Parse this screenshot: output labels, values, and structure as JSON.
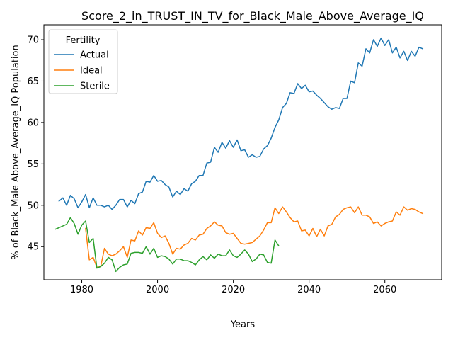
{
  "chart_data": {
    "type": "line",
    "title": "Score_2_in_TRUST_IN_TV_for_Black_Male_Above_Average_IQ",
    "xlabel": "Years",
    "ylabel": "% of Black_Male Above_Average_IQ Population",
    "xlim": [
      1970,
      2075
    ],
    "ylim": [
      41,
      71.8
    ],
    "xticks": [
      1980,
      2000,
      2020,
      2040,
      2060
    ],
    "yticks": [
      45,
      50,
      55,
      60,
      65,
      70
    ],
    "grid": false,
    "legend": {
      "title": "Fertility",
      "position": "upper-left"
    },
    "series": [
      {
        "name": "Actual",
        "color": "#1f77b4",
        "points": [
          [
            1974,
            50.5
          ],
          [
            1975,
            50.9
          ],
          [
            1976,
            50.0
          ],
          [
            1977,
            51.2
          ],
          [
            1978,
            50.8
          ],
          [
            1979,
            49.7
          ],
          [
            1980,
            50.4
          ],
          [
            1981,
            51.3
          ],
          [
            1982,
            49.7
          ],
          [
            1983,
            50.9
          ],
          [
            1984,
            50.0
          ],
          [
            1985,
            50.0
          ],
          [
            1986,
            49.8
          ],
          [
            1987,
            50.0
          ],
          [
            1988,
            49.5
          ],
          [
            1989,
            50.0
          ],
          [
            1990,
            50.7
          ],
          [
            1991,
            50.7
          ],
          [
            1992,
            49.8
          ],
          [
            1993,
            50.6
          ],
          [
            1994,
            50.2
          ],
          [
            1995,
            51.4
          ],
          [
            1996,
            51.6
          ],
          [
            1997,
            52.9
          ],
          [
            1998,
            52.8
          ],
          [
            1999,
            53.6
          ],
          [
            2000,
            52.9
          ],
          [
            2001,
            53.0
          ],
          [
            2002,
            52.5
          ],
          [
            2003,
            52.2
          ],
          [
            2004,
            51.0
          ],
          [
            2005,
            51.7
          ],
          [
            2006,
            51.3
          ],
          [
            2007,
            52.0
          ],
          [
            2008,
            51.7
          ],
          [
            2009,
            52.6
          ],
          [
            2010,
            52.9
          ],
          [
            2011,
            53.6
          ],
          [
            2012,
            53.6
          ],
          [
            2013,
            55.1
          ],
          [
            2014,
            55.2
          ],
          [
            2015,
            57.0
          ],
          [
            2016,
            56.4
          ],
          [
            2017,
            57.6
          ],
          [
            2018,
            56.9
          ],
          [
            2019,
            57.8
          ],
          [
            2020,
            57.0
          ],
          [
            2021,
            57.9
          ],
          [
            2022,
            56.6
          ],
          [
            2023,
            56.7
          ],
          [
            2024,
            55.8
          ],
          [
            2025,
            56.1
          ],
          [
            2026,
            55.8
          ],
          [
            2027,
            55.9
          ],
          [
            2028,
            56.8
          ],
          [
            2029,
            57.2
          ],
          [
            2030,
            58.1
          ],
          [
            2031,
            59.4
          ],
          [
            2032,
            60.3
          ],
          [
            2033,
            61.8
          ],
          [
            2034,
            62.3
          ],
          [
            2035,
            63.6
          ],
          [
            2036,
            63.5
          ],
          [
            2037,
            64.7
          ],
          [
            2038,
            64.1
          ],
          [
            2039,
            64.5
          ],
          [
            2040,
            63.7
          ],
          [
            2041,
            63.8
          ],
          [
            2042,
            63.3
          ],
          [
            2043,
            62.9
          ],
          [
            2044,
            62.4
          ],
          [
            2045,
            61.9
          ],
          [
            2046,
            61.6
          ],
          [
            2047,
            61.8
          ],
          [
            2048,
            61.7
          ],
          [
            2049,
            62.9
          ],
          [
            2050,
            62.9
          ],
          [
            2051,
            65.0
          ],
          [
            2052,
            64.8
          ],
          [
            2053,
            67.2
          ],
          [
            2054,
            66.8
          ],
          [
            2055,
            68.9
          ],
          [
            2056,
            68.4
          ],
          [
            2057,
            70.0
          ],
          [
            2058,
            69.2
          ],
          [
            2059,
            70.2
          ],
          [
            2060,
            69.3
          ],
          [
            2061,
            70.0
          ],
          [
            2062,
            68.4
          ],
          [
            2063,
            69.1
          ],
          [
            2064,
            67.8
          ],
          [
            2065,
            68.6
          ],
          [
            2066,
            67.5
          ],
          [
            2067,
            68.6
          ],
          [
            2068,
            68.0
          ],
          [
            2069,
            69.1
          ],
          [
            2070,
            68.9
          ]
        ]
      },
      {
        "name": "Ideal",
        "color": "#ff7f0e",
        "points": [
          [
            1981,
            47.2
          ],
          [
            1982,
            43.4
          ],
          [
            1983,
            43.7
          ],
          [
            1984,
            42.5
          ],
          [
            1985,
            42.6
          ],
          [
            1986,
            44.8
          ],
          [
            1987,
            44.1
          ],
          [
            1988,
            43.9
          ],
          [
            1989,
            44.1
          ],
          [
            1990,
            44.5
          ],
          [
            1991,
            45.0
          ],
          [
            1992,
            43.7
          ],
          [
            1993,
            45.8
          ],
          [
            1994,
            45.7
          ],
          [
            1995,
            46.9
          ],
          [
            1996,
            46.4
          ],
          [
            1997,
            47.3
          ],
          [
            1998,
            47.2
          ],
          [
            1999,
            47.9
          ],
          [
            2000,
            46.6
          ],
          [
            2001,
            46.1
          ],
          [
            2002,
            46.3
          ],
          [
            2003,
            45.4
          ],
          [
            2004,
            44.1
          ],
          [
            2005,
            44.8
          ],
          [
            2006,
            44.7
          ],
          [
            2007,
            45.2
          ],
          [
            2008,
            45.4
          ],
          [
            2009,
            46.0
          ],
          [
            2010,
            45.8
          ],
          [
            2011,
            46.4
          ],
          [
            2012,
            46.5
          ],
          [
            2013,
            47.2
          ],
          [
            2014,
            47.5
          ],
          [
            2015,
            48.0
          ],
          [
            2016,
            47.6
          ],
          [
            2017,
            47.5
          ],
          [
            2018,
            46.7
          ],
          [
            2019,
            46.5
          ],
          [
            2020,
            46.6
          ],
          [
            2021,
            46.0
          ],
          [
            2022,
            45.4
          ],
          [
            2023,
            45.3
          ],
          [
            2024,
            45.4
          ],
          [
            2025,
            45.5
          ],
          [
            2026,
            45.9
          ],
          [
            2027,
            46.3
          ],
          [
            2028,
            47.0
          ],
          [
            2029,
            47.9
          ],
          [
            2030,
            47.9
          ],
          [
            2031,
            49.7
          ],
          [
            2032,
            49.0
          ],
          [
            2033,
            49.8
          ],
          [
            2034,
            49.2
          ],
          [
            2035,
            48.5
          ],
          [
            2036,
            48.0
          ],
          [
            2037,
            48.1
          ],
          [
            2038,
            46.9
          ],
          [
            2039,
            47.0
          ],
          [
            2040,
            46.3
          ],
          [
            2041,
            47.2
          ],
          [
            2042,
            46.2
          ],
          [
            2043,
            47.1
          ],
          [
            2044,
            46.3
          ],
          [
            2045,
            47.5
          ],
          [
            2046,
            47.7
          ],
          [
            2047,
            48.6
          ],
          [
            2048,
            48.9
          ],
          [
            2049,
            49.5
          ],
          [
            2050,
            49.7
          ],
          [
            2051,
            49.8
          ],
          [
            2052,
            49.1
          ],
          [
            2053,
            49.8
          ],
          [
            2054,
            48.8
          ],
          [
            2055,
            48.8
          ],
          [
            2056,
            48.6
          ],
          [
            2057,
            47.8
          ],
          [
            2058,
            48.0
          ],
          [
            2059,
            47.5
          ],
          [
            2060,
            47.8
          ],
          [
            2061,
            48.0
          ],
          [
            2062,
            48.1
          ],
          [
            2063,
            49.2
          ],
          [
            2064,
            48.8
          ],
          [
            2065,
            49.8
          ],
          [
            2066,
            49.4
          ],
          [
            2067,
            49.6
          ],
          [
            2068,
            49.5
          ],
          [
            2069,
            49.2
          ],
          [
            2070,
            49.0
          ]
        ]
      },
      {
        "name": "Sterile",
        "color": "#2ca02c",
        "points": [
          [
            1973,
            47.1
          ],
          [
            1974,
            47.3
          ],
          [
            1975,
            47.5
          ],
          [
            1976,
            47.7
          ],
          [
            1977,
            48.5
          ],
          [
            1978,
            47.8
          ],
          [
            1979,
            46.5
          ],
          [
            1980,
            47.6
          ],
          [
            1981,
            48.1
          ],
          [
            1982,
            45.5
          ],
          [
            1983,
            46.0
          ],
          [
            1984,
            42.4
          ],
          [
            1985,
            42.6
          ],
          [
            1986,
            43.0
          ],
          [
            1987,
            43.7
          ],
          [
            1988,
            43.4
          ],
          [
            1989,
            42.0
          ],
          [
            1990,
            42.5
          ],
          [
            1991,
            42.8
          ],
          [
            1992,
            42.9
          ],
          [
            1993,
            44.2
          ],
          [
            1994,
            44.3
          ],
          [
            1995,
            44.3
          ],
          [
            1996,
            44.2
          ],
          [
            1997,
            45.0
          ],
          [
            1998,
            44.1
          ],
          [
            1999,
            44.8
          ],
          [
            2000,
            43.7
          ],
          [
            2001,
            43.9
          ],
          [
            2002,
            43.8
          ],
          [
            2003,
            43.5
          ],
          [
            2004,
            42.9
          ],
          [
            2005,
            43.5
          ],
          [
            2006,
            43.5
          ],
          [
            2007,
            43.3
          ],
          [
            2008,
            43.3
          ],
          [
            2009,
            43.1
          ],
          [
            2010,
            42.8
          ],
          [
            2011,
            43.4
          ],
          [
            2012,
            43.8
          ],
          [
            2013,
            43.4
          ],
          [
            2014,
            44.0
          ],
          [
            2015,
            43.6
          ],
          [
            2016,
            44.1
          ],
          [
            2017,
            43.9
          ],
          [
            2018,
            43.9
          ],
          [
            2019,
            44.6
          ],
          [
            2020,
            43.9
          ],
          [
            2021,
            43.7
          ],
          [
            2022,
            44.1
          ],
          [
            2023,
            44.6
          ],
          [
            2024,
            44.1
          ],
          [
            2025,
            43.2
          ],
          [
            2026,
            43.5
          ],
          [
            2027,
            44.1
          ],
          [
            2028,
            44.0
          ],
          [
            2029,
            43.1
          ],
          [
            2030,
            43.0
          ],
          [
            2031,
            45.8
          ],
          [
            2032,
            45.1
          ]
        ]
      }
    ]
  }
}
